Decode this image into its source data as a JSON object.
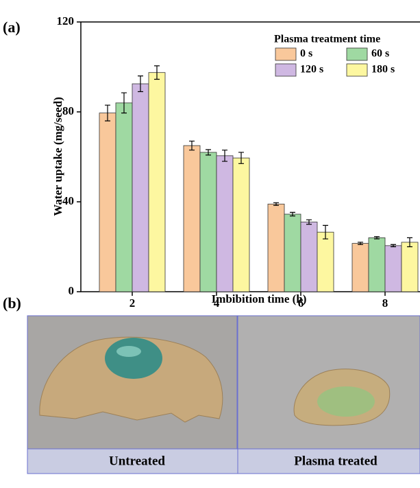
{
  "chart_data": {
    "type": "bar",
    "x_label": "Imbibition time (h)",
    "y_label": "Water uptake (mg/seed)",
    "categories": [
      "2",
      "4",
      "6",
      "8"
    ],
    "legend_title": "Plasma treatment time",
    "legend_position": "upper right",
    "series": [
      {
        "name": "0 s",
        "color": "#f9c89b",
        "values": [
          79.5,
          65,
          39,
          21.5
        ],
        "errors": [
          3.5,
          2,
          0.6,
          0.5
        ]
      },
      {
        "name": "60 s",
        "color": "#9fd9a2",
        "values": [
          84,
          62,
          34.5,
          24
        ],
        "errors": [
          4.5,
          1.2,
          0.8,
          0.5
        ]
      },
      {
        "name": "120 s",
        "color": "#cfb8e2",
        "values": [
          92.5,
          60.5,
          31,
          20.5
        ],
        "errors": [
          3.5,
          2.5,
          1,
          0.5
        ]
      },
      {
        "name": "180 s",
        "color": "#fdf7a0",
        "values": [
          97.5,
          59.5,
          26.5,
          22
        ],
        "errors": [
          3,
          2.5,
          3,
          2
        ]
      }
    ],
    "ylim": [
      0,
      120
    ],
    "yticks": [
      0,
      40,
      80,
      120
    ],
    "grid": false
  },
  "panel_labels": [
    "(a)",
    "(b)"
  ],
  "photos": [
    {
      "label": "Untreated"
    },
    {
      "label": "Plasma treated"
    }
  ]
}
